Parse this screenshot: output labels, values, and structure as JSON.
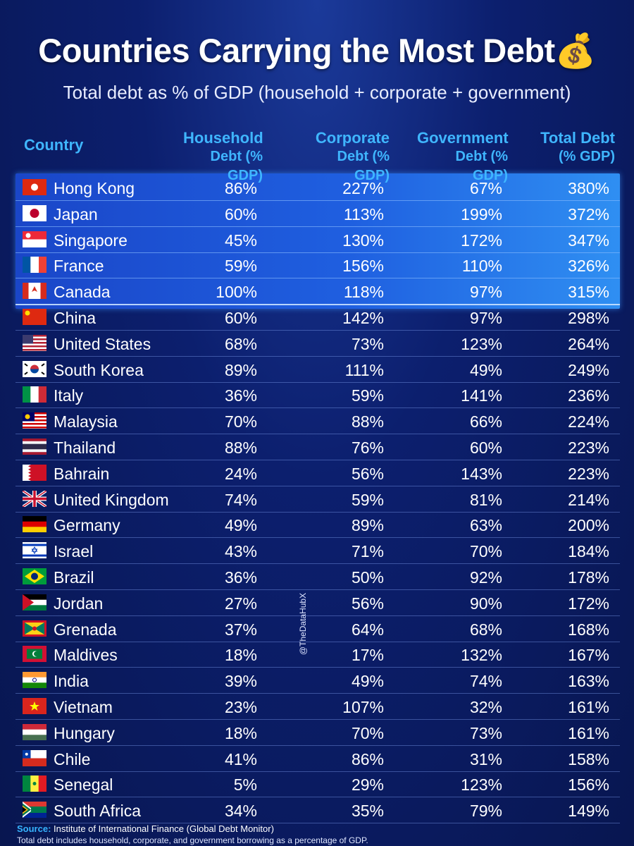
{
  "header": {
    "title": "Countries Carrying the Most Debt💰",
    "subtitle": "Total debt as % of GDP (household + corporate + government)"
  },
  "table": {
    "columns": [
      [
        "Country"
      ],
      [
        "Household",
        "Debt (% GDP)"
      ],
      [
        "Corporate",
        "Debt (% GDP)"
      ],
      [
        "Government",
        "Debt (% GDP)"
      ],
      [
        "Total Debt",
        "(% GDP)"
      ]
    ],
    "highlighted_rows": 5,
    "rows": [
      [
        "Hong Kong",
        "86%",
        "227%",
        "67%",
        "380%"
      ],
      [
        "Japan",
        "60%",
        "113%",
        "199%",
        "372%"
      ],
      [
        "Singapore",
        "45%",
        "130%",
        "172%",
        "347%"
      ],
      [
        "France",
        "59%",
        "156%",
        "110%",
        "326%"
      ],
      [
        "Canada",
        "100%",
        "118%",
        "97%",
        "315%"
      ],
      [
        "China",
        "60%",
        "142%",
        "97%",
        "298%"
      ],
      [
        "United States",
        "68%",
        "73%",
        "123%",
        "264%"
      ],
      [
        "South Korea",
        "89%",
        "111%",
        "49%",
        "249%"
      ],
      [
        "Italy",
        "36%",
        "59%",
        "141%",
        "236%"
      ],
      [
        "Malaysia",
        "70%",
        "88%",
        "66%",
        "224%"
      ],
      [
        "Thailand",
        "88%",
        "76%",
        "60%",
        "223%"
      ],
      [
        "Bahrain",
        "24%",
        "56%",
        "143%",
        "223%"
      ],
      [
        "United Kingdom",
        "74%",
        "59%",
        "81%",
        "214%"
      ],
      [
        "Germany",
        "49%",
        "89%",
        "63%",
        "200%"
      ],
      [
        "Israel",
        "43%",
        "71%",
        "70%",
        "184%"
      ],
      [
        "Brazil",
        "36%",
        "50%",
        "92%",
        "178%"
      ],
      [
        "Jordan",
        "27%",
        "56%",
        "90%",
        "172%"
      ],
      [
        "Grenada",
        "37%",
        "64%",
        "68%",
        "168%"
      ],
      [
        "Maldives",
        "18%",
        "17%",
        "132%",
        "167%"
      ],
      [
        "India",
        "39%",
        "49%",
        "74%",
        "163%"
      ],
      [
        "Vietnam",
        "23%",
        "107%",
        "32%",
        "161%"
      ],
      [
        "Hungary",
        "18%",
        "70%",
        "73%",
        "161%"
      ],
      [
        "Chile",
        "41%",
        "86%",
        "31%",
        "158%"
      ],
      [
        "Senegal",
        "5%",
        "29%",
        "123%",
        "156%"
      ],
      [
        "South Africa",
        "34%",
        "35%",
        "79%",
        "149%"
      ]
    ]
  },
  "watermark": "@TheDataHubX",
  "footer": {
    "source_label": "Source:",
    "source": "Institute of International Finance (Global Debt Monitor)",
    "note": "Total debt includes household, corporate, and government borrowing as a percentage of GDP."
  }
}
